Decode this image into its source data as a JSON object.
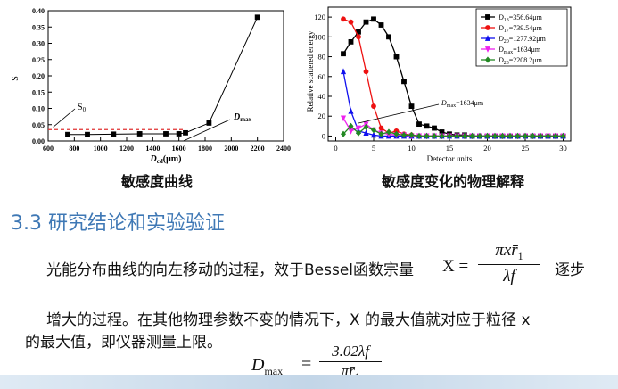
{
  "chart_data": [
    {
      "type": "line",
      "title": "",
      "xlabel": "D",
      "xlabel_sub": "cd",
      "xlabel_unit": "(μm)",
      "ylabel": "S",
      "xlim": [
        600,
        2400
      ],
      "ylim": [
        0,
        0.4
      ],
      "xticks": [
        "600",
        "800",
        "1000",
        "1200",
        "1400",
        "1600",
        "1800",
        "2000",
        "2200",
        "2400"
      ],
      "yticks": [
        "0.00",
        "0.05",
        "0.10",
        "0.15",
        "0.20",
        "0.25",
        "0.30",
        "0.35",
        "0.40"
      ],
      "series": [
        {
          "x": [
            750,
            900,
            1100,
            1300,
            1500,
            1600,
            1650,
            1830,
            2200
          ],
          "y": [
            0.02,
            0.02,
            0.021,
            0.022,
            0.022,
            0.022,
            0.025,
            0.055,
            0.38
          ]
        }
      ],
      "threshold_y": 0.035,
      "annotations": [
        {
          "text": "S",
          "sub": "0",
          "at": [
            625,
            0.04
          ]
        },
        {
          "text": "D",
          "sub": "max",
          "at": [
            1634,
            0.0
          ]
        }
      ]
    },
    {
      "type": "line",
      "title": "",
      "xlabel": "Detector units",
      "ylabel": "Relative scattered energy",
      "xlim": [
        -1,
        31
      ],
      "ylim": [
        -5,
        130
      ],
      "xticks": [
        "0",
        "5",
        "10",
        "15",
        "20",
        "25",
        "30"
      ],
      "yticks": [
        "0",
        "20",
        "40",
        "60",
        "80",
        "100",
        "120"
      ],
      "series": [
        {
          "name": "=356.64μm",
          "sym": "D",
          "sub": "13",
          "color": "#000000",
          "marker": "square",
          "x": [
            1,
            2,
            3,
            4,
            5,
            6,
            7,
            8,
            9,
            10,
            11,
            12,
            13,
            14,
            15,
            16,
            17,
            18,
            19,
            20,
            21,
            22,
            23,
            24,
            25,
            26,
            27,
            28,
            29,
            30
          ],
          "y": [
            83,
            95,
            105,
            115,
            118,
            112,
            100,
            80,
            55,
            30,
            12,
            10,
            8,
            4,
            2,
            1,
            1,
            0,
            0,
            0,
            0,
            0,
            0,
            0,
            0,
            0,
            0,
            0,
            0,
            0
          ]
        },
        {
          "name": "=739.54μm",
          "sym": "D",
          "sub": "17",
          "color": "#ee1111",
          "marker": "circle",
          "x": [
            1,
            2,
            3,
            4,
            5,
            6,
            7,
            8,
            9,
            10,
            11,
            12,
            13,
            14,
            15,
            16,
            17,
            18,
            19,
            20,
            21,
            22,
            23,
            24,
            25,
            26,
            27,
            28,
            29,
            30
          ],
          "y": [
            118,
            115,
            100,
            65,
            30,
            8,
            3,
            5,
            2,
            1,
            0,
            0,
            0,
            0,
            0,
            0,
            0,
            0,
            0,
            0,
            0,
            0,
            0,
            0,
            0,
            0,
            0,
            0,
            0,
            0
          ]
        },
        {
          "name": "=1277.92μm",
          "sym": "D",
          "sub": "20",
          "color": "#1111ee",
          "marker": "triangle",
          "x": [
            1,
            2,
            3,
            4,
            5,
            6,
            7,
            8,
            9,
            10,
            11,
            12,
            13,
            14,
            15,
            16,
            17,
            18,
            19,
            20,
            21,
            22,
            23,
            24,
            25,
            26,
            27,
            28,
            29,
            30
          ],
          "y": [
            65,
            25,
            5,
            3,
            1,
            0,
            0,
            0,
            0,
            0,
            0,
            0,
            0,
            0,
            0,
            0,
            0,
            0,
            0,
            0,
            0,
            0,
            0,
            0,
            0,
            0,
            0,
            0,
            0,
            0
          ]
        },
        {
          "name": "=1634μm",
          "sym": "D",
          "sub": "max",
          "color": "#ee22ee",
          "marker": "triangle-down",
          "x": [
            1,
            2,
            3,
            4,
            5,
            6,
            7,
            8,
            9,
            10,
            11,
            12,
            13,
            14,
            15,
            16,
            17,
            18,
            19,
            20,
            21,
            22,
            23,
            24,
            25,
            26,
            27,
            28,
            29,
            30
          ],
          "y": [
            18,
            5,
            8,
            12,
            6,
            3,
            2,
            1,
            1,
            0,
            0,
            0,
            0,
            0,
            0,
            0,
            0,
            0,
            0,
            0,
            0,
            0,
            0,
            0,
            0,
            0,
            0,
            0,
            0,
            0
          ]
        },
        {
          "name": "=2208.2μm",
          "sym": "D",
          "sub": "23",
          "color": "#228822",
          "marker": "diamond",
          "x": [
            1,
            2,
            3,
            4,
            5,
            6,
            7,
            8,
            9,
            10,
            11,
            12,
            13,
            14,
            15,
            16,
            17,
            18,
            19,
            20,
            21,
            22,
            23,
            24,
            25,
            26,
            27,
            28,
            29,
            30
          ],
          "y": [
            2,
            10,
            3,
            9,
            6,
            2,
            4,
            2,
            1,
            1,
            0,
            0,
            0,
            0,
            0,
            0,
            0,
            0,
            0,
            0,
            0,
            0,
            0,
            0,
            0,
            0,
            0,
            0,
            0,
            0
          ]
        }
      ],
      "annotations": [
        {
          "text": "D",
          "sub": "max",
          "rest": "=1634μm",
          "at": [
            3,
            13
          ]
        }
      ],
      "legend": "top-right"
    }
  ],
  "captions": {
    "left": "敏感度曲线",
    "right": "敏感度变化的物理解释"
  },
  "section_title": "3.3 研究结论和实验验证",
  "paragraph": {
    "line1": "光能分布曲线的向左移动的过程，效于Bessel函数宗量",
    "x_eq": "X =",
    "frac_num": "πxr̄",
    "frac_num_sub": "1",
    "frac_den": "λf",
    "tail": "逐步",
    "line2": "增大的过程。在其他物理参数不变的情况下，X 的最大值就对应于粒径 x",
    "line3": "的最大值，即仪器测量上限。"
  },
  "formula": {
    "lhs": "D",
    "lhs_sub": "max",
    "eq": "=",
    "num": "3.02λf",
    "den": "πr̄",
    "den_sub": "1"
  }
}
